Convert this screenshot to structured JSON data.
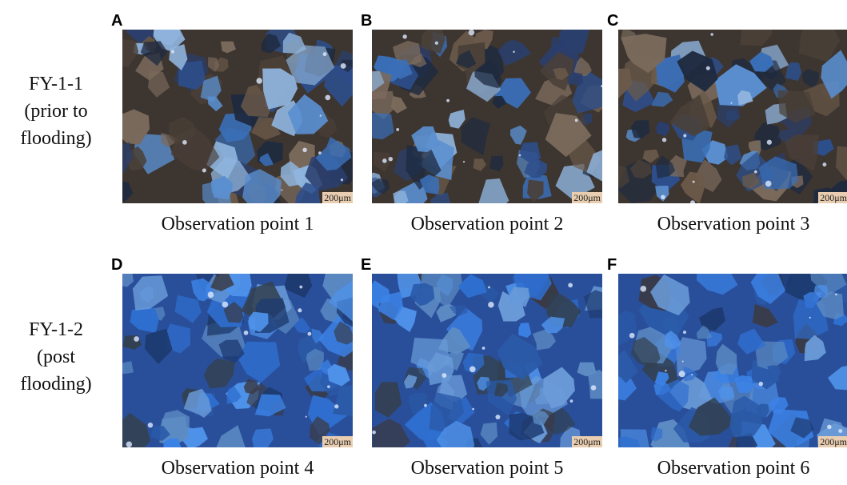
{
  "rows": [
    {
      "label_lines": [
        "FY-1-1",
        "(prior to",
        "flooding)"
      ],
      "panels": [
        {
          "letter": "A",
          "scale": "200μm",
          "caption": "Observation point 1"
        },
        {
          "letter": "B",
          "scale": "200μm",
          "caption": "Observation point 2"
        },
        {
          "letter": "C",
          "scale": "200μm",
          "caption": "Observation point 3"
        }
      ]
    },
    {
      "label_lines": [
        "FY-1-2",
        "(post",
        "flooding)"
      ],
      "panels": [
        {
          "letter": "D",
          "scale": "200μm",
          "caption": "Observation point 4"
        },
        {
          "letter": "E",
          "scale": "200μm",
          "caption": "Observation point 5"
        },
        {
          "letter": "F",
          "scale": "200μm",
          "caption": "Observation point 6"
        }
      ]
    }
  ]
}
